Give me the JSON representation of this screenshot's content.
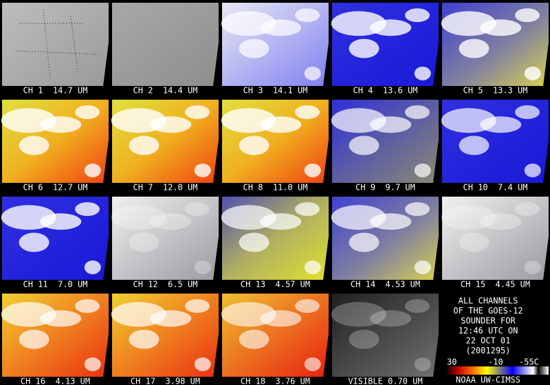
{
  "panels": [
    {
      "label": "CH 1  14.7 UM"
    },
    {
      "label": "CH 2  14.4 UM"
    },
    {
      "label": "CH 3  14.1 UM"
    },
    {
      "label": "CH 4  13.6 UM"
    },
    {
      "label": "CH 5  13.3 UM"
    },
    {
      "label": "CH 6  12.7 UM"
    },
    {
      "label": "CH 7  12.0 UM"
    },
    {
      "label": "CH 8  11.0 UM"
    },
    {
      "label": "CH 9  9.7 UM"
    },
    {
      "label": "CH 10  7.4 UM"
    },
    {
      "label": "CH 11  7.0 UM"
    },
    {
      "label": "CH 12  6.5 UM"
    },
    {
      "label": "CH 13  4.57 UM"
    },
    {
      "label": "CH 14  4.53 UM"
    },
    {
      "label": "CH 15  4.45 UM"
    },
    {
      "label": "CH 16  4.13 UM"
    },
    {
      "label": "CH 17  3.98 UM"
    },
    {
      "label": "CH 18  3.76 UM"
    },
    {
      "label": "VISIBLE 0.70 UM"
    }
  ],
  "legend": {
    "lines": [
      "ALL CHANNELS",
      "OF THE GOES-12",
      "SOUNDER FOR",
      "12:46 UTC ON",
      "22 OCT 01",
      "(2001295)"
    ],
    "scale_labels": [
      "30",
      "-10",
      "-55C"
    ],
    "credit": "NOAA UW-CIMSS"
  }
}
